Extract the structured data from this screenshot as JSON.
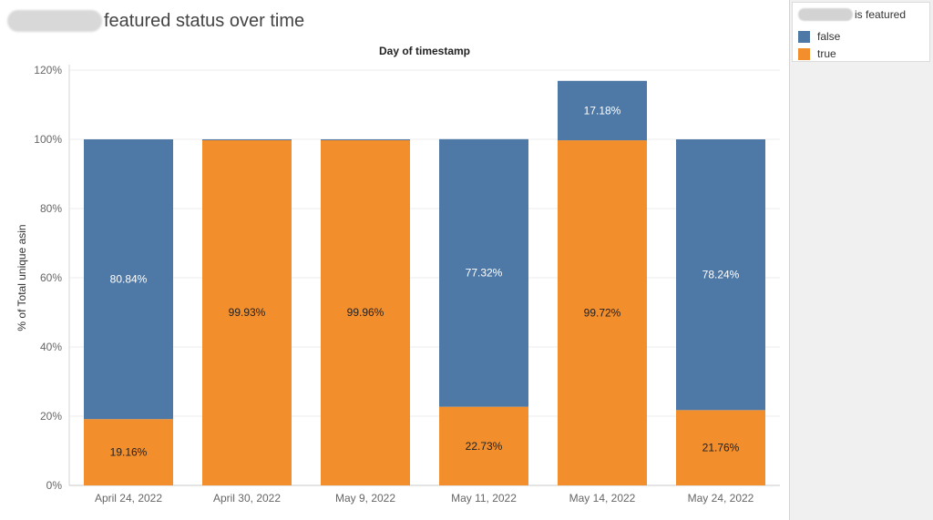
{
  "title": {
    "text": "featured status over time"
  },
  "legend": {
    "title": "is featured",
    "items": [
      {
        "label": "false",
        "color": "#4e79a7"
      },
      {
        "label": "true",
        "color": "#f28e2b"
      }
    ]
  },
  "chart_data": {
    "type": "bar",
    "stacked": true,
    "column_title": "Day of timestamp",
    "ylabel": "% of Total unique asin",
    "xlabel": "",
    "ylim": [
      0,
      120
    ],
    "yticks": [
      0,
      20,
      40,
      60,
      80,
      100,
      120
    ],
    "ytick_labels": [
      "0%",
      "20%",
      "40%",
      "60%",
      "80%",
      "100%",
      "120%"
    ],
    "grid": true,
    "legend_position": "top-right",
    "categories": [
      "April 24, 2022",
      "April 30, 2022",
      "May 9, 2022",
      "May 11, 2022",
      "May 14, 2022",
      "May 24, 2022"
    ],
    "series": [
      {
        "name": "true",
        "color": "#f28e2b",
        "values": [
          19.16,
          99.93,
          99.96,
          22.73,
          99.72,
          21.76
        ],
        "labels": [
          "19.16%",
          "99.93%",
          "99.96%",
          "22.73%",
          "99.72%",
          "21.76%"
        ]
      },
      {
        "name": "false",
        "color": "#4e79a7",
        "values": [
          80.84,
          0.07,
          0.04,
          77.32,
          17.18,
          78.24
        ],
        "labels": [
          "80.84%",
          "",
          "",
          "77.32%",
          "17.18%",
          "78.24%"
        ]
      }
    ]
  }
}
